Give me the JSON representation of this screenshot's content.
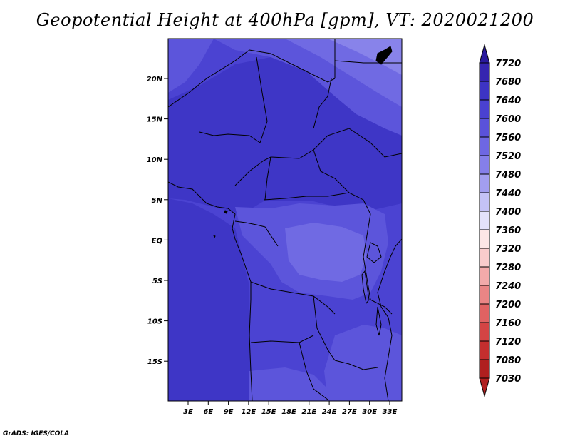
{
  "title": "Geopotential Height at 400hPa [gpm], VT: 2020021200",
  "credit": "GrADS: IGES/COLA",
  "map": {
    "lat_ticks": [
      "20N",
      "15N",
      "10N",
      "5N",
      "EQ",
      "5S",
      "10S",
      "15S"
    ],
    "lon_ticks": [
      "3E",
      "6E",
      "9E",
      "12E",
      "15E",
      "18E",
      "21E",
      "24E",
      "27E",
      "30E",
      "33E"
    ]
  },
  "colorbar": {
    "levels": [
      "7720",
      "7680",
      "7640",
      "7600",
      "7560",
      "7520",
      "7480",
      "7440",
      "7400",
      "7360",
      "7320",
      "7280",
      "7240",
      "7200",
      "7160",
      "7120",
      "7080",
      "7030"
    ],
    "colors": [
      "#2a1a9e",
      "#3525b0",
      "#3d34c4",
      "#4a41d0",
      "#5a52da",
      "#6e67e2",
      "#857fe9",
      "#a29eef",
      "#c4c2f6",
      "#e3e2fb",
      "#fde6e6",
      "#f9cccc",
      "#f3aaaa",
      "#ea8585",
      "#e06262",
      "#d44444",
      "#c42e2e",
      "#b01f1f"
    ]
  },
  "field_colors": {
    "band_7640": "#3e36c6",
    "band_7600": "#4b43d2",
    "band_7560": "#5c55db",
    "band_7520": "#706ae3",
    "band_7480": "#8883ea",
    "band_7440": "#a29eef",
    "border": "#000000"
  }
}
